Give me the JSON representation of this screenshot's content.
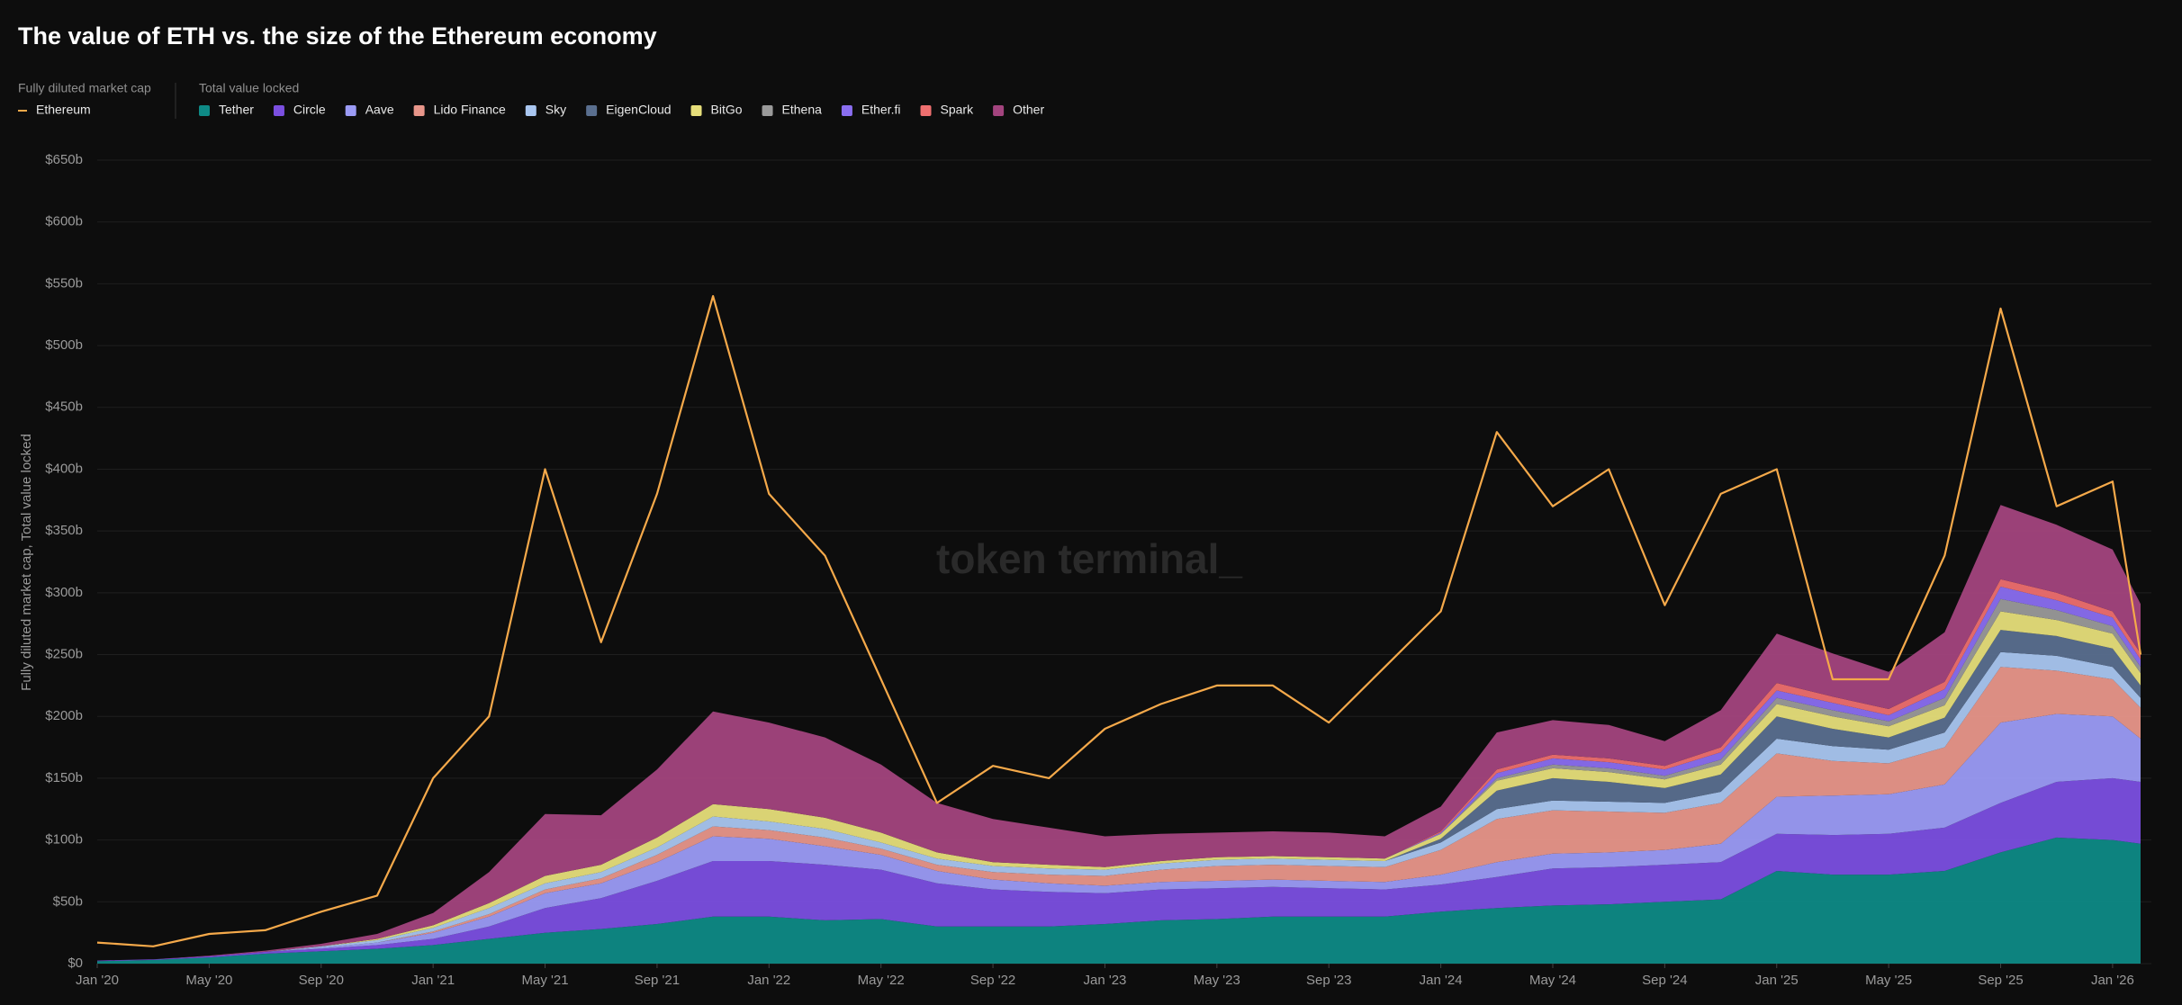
{
  "chart_data": {
    "type": "stacked-area-line",
    "title": "The value of ETH vs. the size of the Ethereum economy",
    "line_group_label": "Fully diluted market cap",
    "area_group_label": "Total value locked",
    "ylabel": "Fully diluted market cap, Total value locked",
    "watermark": "token terminal_",
    "x": [
      "2020-01",
      "2020-03",
      "2020-05",
      "2020-07",
      "2020-09",
      "2020-11",
      "2021-01",
      "2021-03",
      "2021-05",
      "2021-07",
      "2021-09",
      "2021-11",
      "2022-01",
      "2022-03",
      "2022-05",
      "2022-07",
      "2022-09",
      "2022-11",
      "2023-01",
      "2023-03",
      "2023-05",
      "2023-07",
      "2023-09",
      "2023-11",
      "2024-01",
      "2024-03",
      "2024-05",
      "2024-07",
      "2024-09",
      "2024-11",
      "2025-01",
      "2025-03",
      "2025-05",
      "2025-07",
      "2025-09",
      "2025-11",
      "2026-01",
      "2026-02"
    ],
    "xlim": [
      "2020-01",
      "2026-02"
    ],
    "xticks": [
      {
        "value": "2020-01",
        "label": "Jan '20"
      },
      {
        "value": "2020-05",
        "label": "May '20"
      },
      {
        "value": "2020-09",
        "label": "Sep '20"
      },
      {
        "value": "2021-01",
        "label": "Jan '21"
      },
      {
        "value": "2021-05",
        "label": "May '21"
      },
      {
        "value": "2021-09",
        "label": "Sep '21"
      },
      {
        "value": "2022-01",
        "label": "Jan '22"
      },
      {
        "value": "2022-05",
        "label": "May '22"
      },
      {
        "value": "2022-09",
        "label": "Sep '22"
      },
      {
        "value": "2023-01",
        "label": "Jan '23"
      },
      {
        "value": "2023-05",
        "label": "May '23"
      },
      {
        "value": "2023-09",
        "label": "Sep '23"
      },
      {
        "value": "2024-01",
        "label": "Jan '24"
      },
      {
        "value": "2024-05",
        "label": "May '24"
      },
      {
        "value": "2024-09",
        "label": "Sep '24"
      },
      {
        "value": "2025-01",
        "label": "Jan '25"
      },
      {
        "value": "2025-05",
        "label": "May '25"
      },
      {
        "value": "2025-09",
        "label": "Sep '25"
      },
      {
        "value": "2026-01",
        "label": "Jan '26"
      }
    ],
    "ylim": [
      0,
      650
    ],
    "yticks": [
      {
        "value": 0,
        "label": "$0"
      },
      {
        "value": 50,
        "label": "$50b"
      },
      {
        "value": 100,
        "label": "$100b"
      },
      {
        "value": 150,
        "label": "$150b"
      },
      {
        "value": 200,
        "label": "$200b"
      },
      {
        "value": 250,
        "label": "$250b"
      },
      {
        "value": 300,
        "label": "$300b"
      },
      {
        "value": 350,
        "label": "$350b"
      },
      {
        "value": 400,
        "label": "$400b"
      },
      {
        "value": 450,
        "label": "$450b"
      },
      {
        "value": 500,
        "label": "$500b"
      },
      {
        "value": 550,
        "label": "$550b"
      },
      {
        "value": 600,
        "label": "$600b"
      },
      {
        "value": 650,
        "label": "$650b"
      }
    ],
    "grid": true,
    "line_series": [
      {
        "name": "Ethereum",
        "color": "#f5a94a",
        "values": [
          17,
          14,
          24,
          27,
          42,
          55,
          150,
          200,
          400,
          260,
          380,
          540,
          380,
          330,
          230,
          130,
          160,
          150,
          190,
          210,
          225,
          225,
          195,
          240,
          285,
          430,
          370,
          400,
          290,
          380,
          400,
          230,
          230,
          330,
          530,
          370,
          390,
          250
        ]
      }
    ],
    "series": [
      {
        "name": "Tether",
        "color": "#0e8a86",
        "values": [
          2,
          3,
          5,
          8,
          10,
          12,
          15,
          20,
          25,
          28,
          32,
          38,
          38,
          35,
          36,
          30,
          30,
          30,
          32,
          35,
          36,
          38,
          38,
          38,
          42,
          45,
          47,
          48,
          50,
          52,
          75,
          72,
          72,
          75,
          90,
          102,
          100,
          97
        ]
      },
      {
        "name": "Circle",
        "color": "#7b4fe0",
        "values": [
          0.5,
          0.5,
          1,
          1.5,
          2,
          3,
          5,
          10,
          20,
          25,
          35,
          45,
          45,
          45,
          40,
          35,
          30,
          28,
          25,
          25,
          25,
          24,
          23,
          22,
          22,
          25,
          30,
          30,
          30,
          30,
          30,
          32,
          33,
          35,
          40,
          45,
          50,
          50
        ]
      },
      {
        "name": "Aave",
        "color": "#9b9bf5",
        "values": [
          0,
          0,
          0,
          0,
          1,
          2,
          5,
          8,
          12,
          12,
          15,
          20,
          18,
          15,
          12,
          10,
          8,
          7,
          6,
          6,
          6,
          6,
          6,
          6,
          8,
          12,
          12,
          12,
          12,
          15,
          30,
          32,
          32,
          35,
          65,
          55,
          50,
          35
        ]
      },
      {
        "name": "Lido Finance",
        "color": "#e8968a",
        "values": [
          0,
          0,
          0,
          0,
          0,
          0,
          1,
          2,
          3,
          4,
          6,
          8,
          7,
          7,
          5,
          5,
          6,
          7,
          8,
          10,
          12,
          12,
          12,
          12,
          20,
          35,
          35,
          33,
          30,
          33,
          35,
          28,
          25,
          30,
          45,
          35,
          30,
          25
        ]
      },
      {
        "name": "Sky",
        "color": "#a9c6f0",
        "values": [
          0,
          0,
          0,
          0,
          1,
          2,
          3,
          5,
          5,
          5,
          6,
          8,
          7,
          7,
          5,
          5,
          5,
          5,
          5,
          5,
          5,
          5,
          5,
          5,
          6,
          8,
          8,
          8,
          8,
          9,
          12,
          12,
          11,
          12,
          12,
          12,
          10,
          8
        ]
      },
      {
        "name": "EigenCloud",
        "color": "#5a6f8f",
        "values": [
          0,
          0,
          0,
          0,
          0,
          0,
          0,
          0,
          0,
          0,
          0,
          0,
          0,
          0,
          0,
          0,
          0,
          0,
          0,
          0,
          0,
          0,
          0,
          0,
          3,
          15,
          18,
          16,
          12,
          14,
          18,
          14,
          10,
          12,
          18,
          16,
          15,
          10
        ]
      },
      {
        "name": "BitGo",
        "color": "#e6de7a",
        "values": [
          0,
          0,
          0,
          0,
          0,
          1,
          2,
          4,
          6,
          6,
          8,
          10,
          10,
          9,
          8,
          5,
          3,
          3,
          2,
          2,
          2,
          2,
          2,
          2,
          4,
          8,
          8,
          8,
          7,
          8,
          10,
          10,
          9,
          10,
          15,
          13,
          12,
          10
        ]
      },
      {
        "name": "Ethena",
        "color": "#9a9a9a",
        "values": [
          0,
          0,
          0,
          0,
          0,
          0,
          0,
          0,
          0,
          0,
          0,
          0,
          0,
          0,
          0,
          0,
          0,
          0,
          0,
          0,
          0,
          0,
          0,
          0,
          0,
          2,
          3,
          3,
          3,
          4,
          5,
          5,
          4,
          6,
          10,
          8,
          6,
          5
        ]
      },
      {
        "name": "Ether.fi",
        "color": "#8a6ef0",
        "values": [
          0,
          0,
          0,
          0,
          0,
          0,
          0,
          0,
          0,
          0,
          0,
          0,
          0,
          0,
          0,
          0,
          0,
          0,
          0,
          0,
          0,
          0,
          0,
          0,
          1,
          4,
          5,
          5,
          5,
          6,
          6,
          6,
          5,
          7,
          10,
          8,
          7,
          6
        ]
      },
      {
        "name": "Spark",
        "color": "#ee6f6f",
        "values": [
          0,
          0,
          0,
          0,
          0,
          0,
          0,
          0,
          0,
          0,
          0,
          0,
          0,
          0,
          0,
          0,
          0,
          0,
          0,
          0,
          0,
          0,
          0,
          0,
          1,
          3,
          3,
          3,
          3,
          4,
          6,
          5,
          5,
          6,
          6,
          6,
          5,
          5
        ]
      },
      {
        "name": "Other",
        "color": "#a3447e",
        "values": [
          0,
          0,
          0.5,
          1,
          2,
          4,
          10,
          25,
          50,
          40,
          55,
          75,
          70,
          65,
          55,
          40,
          35,
          30,
          25,
          22,
          20,
          20,
          20,
          18,
          20,
          30,
          28,
          27,
          20,
          30,
          40,
          35,
          30,
          40,
          60,
          55,
          50,
          40
        ]
      }
    ]
  }
}
